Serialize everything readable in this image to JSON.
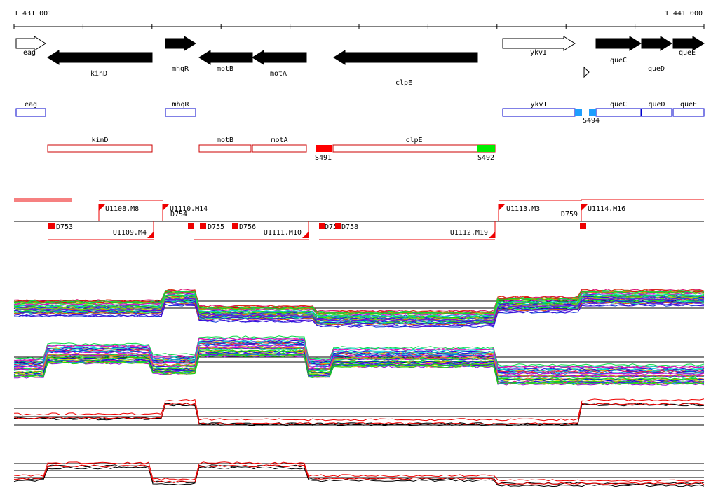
{
  "ruler": {
    "start": "1 431 001",
    "end": "1 441 000"
  },
  "genes": [
    {
      "label": "eag"
    },
    {
      "label": "kinD"
    },
    {
      "label": "mhqR"
    },
    {
      "label": "motB"
    },
    {
      "label": "motA"
    },
    {
      "label": "clpE"
    },
    {
      "label": "ykvI"
    },
    {
      "label": "queC"
    },
    {
      "label": "queD"
    },
    {
      "label": "queE"
    }
  ],
  "blue_features": [
    {
      "label": "eag"
    },
    {
      "label": "mhqR"
    },
    {
      "label": "ykvI"
    },
    {
      "label": "queC"
    },
    {
      "label": "queD"
    },
    {
      "label": "queE"
    },
    {
      "label": "S494"
    }
  ],
  "red_features": [
    {
      "label": "kinD"
    },
    {
      "label": "motB"
    },
    {
      "label": "motA"
    },
    {
      "label": "clpE"
    },
    {
      "label": "S491"
    },
    {
      "label": "S492"
    }
  ],
  "segments": [
    {
      "label": "U1108.M8"
    },
    {
      "label": "D753"
    },
    {
      "label": "U1109.M4"
    },
    {
      "label": "U1110.M14"
    },
    {
      "label": "D754"
    },
    {
      "label": "D755"
    },
    {
      "label": "D756"
    },
    {
      "label": "U1111.M10"
    },
    {
      "label": "D75"
    },
    {
      "label": "D758"
    },
    {
      "label": "U1112.M19"
    },
    {
      "label": "U1113.M3"
    },
    {
      "label": "D759"
    },
    {
      "label": "U1114.M16"
    }
  ]
}
